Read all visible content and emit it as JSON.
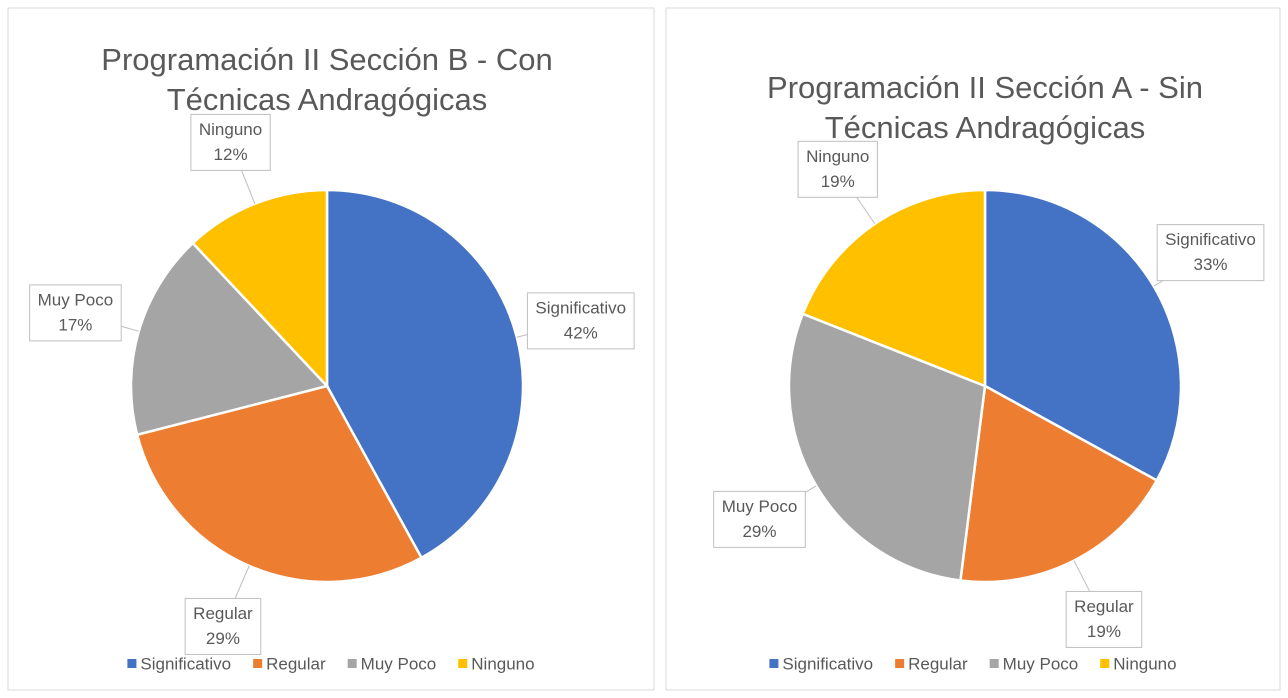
{
  "chart_data": [
    {
      "type": "pie",
      "title": "Programación II Sección B - Con Técnicas Andragógicas",
      "categories": [
        "Significativo",
        "Regular",
        "Muy Poco",
        "Ninguno"
      ],
      "values": [
        42,
        29,
        17,
        12
      ],
      "value_labels": [
        "42%",
        "29%",
        "17%",
        "12%"
      ],
      "colors": [
        "#4472c4",
        "#ed7d31",
        "#a5a5a5",
        "#ffc000"
      ],
      "legend": "bottom"
    },
    {
      "type": "pie",
      "title": "Programación II Sección A - Sin Técnicas Andragógicas",
      "categories": [
        "Significativo",
        "Regular",
        "Muy Poco",
        "Ninguno"
      ],
      "values": [
        33,
        19,
        29,
        19
      ],
      "value_labels": [
        "33%",
        "19%",
        "29%",
        "19%"
      ],
      "colors": [
        "#4472c4",
        "#ed7d31",
        "#a5a5a5",
        "#ffc000"
      ],
      "legend": "bottom"
    }
  ]
}
